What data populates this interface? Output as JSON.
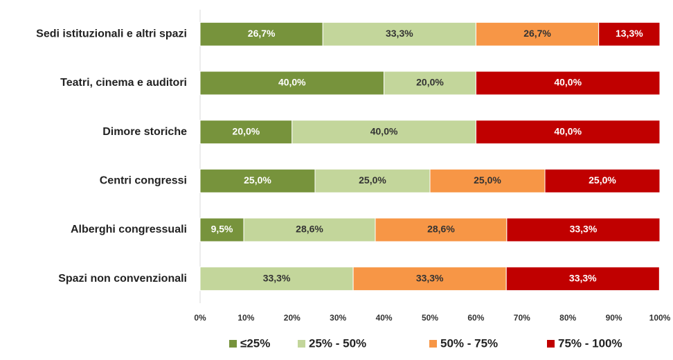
{
  "chart_data": {
    "type": "bar",
    "orientation": "horizontal",
    "stacked": true,
    "categories": [
      "Sedi istituzionali e altri spazi",
      "Teatri, cinema e auditori",
      "Dimore storiche",
      "Centri congressi",
      "Alberghi congressuali",
      "Spazi non convenzionali"
    ],
    "series": [
      {
        "name": "≤25%",
        "color": "#77933c",
        "values": [
          26.7,
          40.0,
          20.0,
          25.0,
          9.5,
          null
        ],
        "value_labels": [
          "26,7%",
          "40,0%",
          "20,0%",
          "25,0%",
          "9,5%",
          null
        ]
      },
      {
        "name": "25% - 50%",
        "color": "#c3d69b",
        "values": [
          33.3,
          20.0,
          40.0,
          25.0,
          28.6,
          33.3
        ],
        "value_labels": [
          "33,3%",
          "20,0%",
          "40,0%",
          "25,0%",
          "28,6%",
          "33,3%"
        ]
      },
      {
        "name": "50% - 75%",
        "color": "#f79646",
        "values": [
          26.7,
          null,
          null,
          25.0,
          28.6,
          33.3
        ],
        "value_labels": [
          "26,7%",
          null,
          null,
          "25,0%",
          "28,6%",
          "33,3%"
        ]
      },
      {
        "name": "75% - 100%",
        "color": "#c00000",
        "values": [
          13.3,
          40.0,
          40.0,
          25.0,
          33.3,
          33.3
        ],
        "value_labels": [
          "13,3%",
          "40,0%",
          "40,0%",
          "25,0%",
          "33,3%",
          "33,3%"
        ]
      }
    ],
    "xlim": [
      0,
      100
    ],
    "xticks": [
      {
        "value": 0,
        "label": "0%"
      },
      {
        "value": 10,
        "label": "10%"
      },
      {
        "value": 20,
        "label": "20%"
      },
      {
        "value": 30,
        "label": "30%"
      },
      {
        "value": 40,
        "label": "40%"
      },
      {
        "value": 50,
        "label": "50%"
      },
      {
        "value": 60,
        "label": "60%"
      },
      {
        "value": 70,
        "label": "70%"
      },
      {
        "value": 80,
        "label": "80%"
      },
      {
        "value": 90,
        "label": "90%"
      },
      {
        "value": 100,
        "label": "100%"
      }
    ],
    "grid": false,
    "legend": "bottom"
  }
}
